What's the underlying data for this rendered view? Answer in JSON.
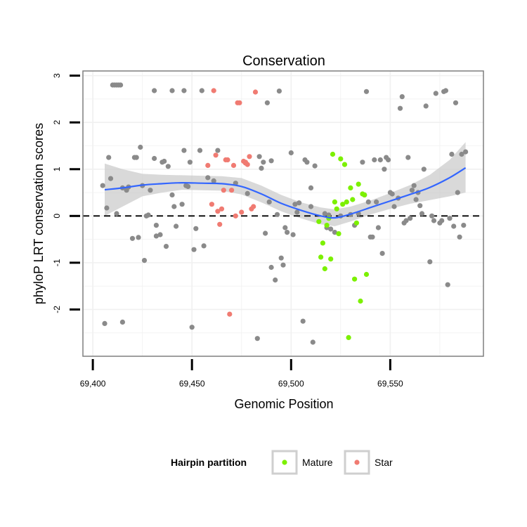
{
  "chart_data": {
    "type": "scatter",
    "title": "Conservation",
    "xlabel": "Genomic Position",
    "ylabel": "phyloP LRT conservation scores",
    "xlim": [
      69395,
      69597
    ],
    "ylim": [
      -3.0,
      3.1
    ],
    "x_ticks": [
      {
        "value": 69400,
        "label": "69,400"
      },
      {
        "value": 69450,
        "label": "69,450"
      },
      {
        "value": 69500,
        "label": "69,500"
      },
      {
        "value": 69550,
        "label": "69,550"
      }
    ],
    "y_ticks": [
      {
        "value": -2,
        "label": "-2"
      },
      {
        "value": -1,
        "label": "-1"
      },
      {
        "value": 0,
        "label": "0"
      },
      {
        "value": 1,
        "label": "1"
      },
      {
        "value": 2,
        "label": "2"
      },
      {
        "value": 3,
        "label": "3"
      }
    ],
    "grid": true,
    "reference_line": {
      "y": 0,
      "style": "dashed"
    },
    "colors": {
      "other": "#8a8a8a",
      "mature": "#7cf000",
      "star": "#f07b72",
      "smooth": "#3366ff",
      "band": "#cccccc",
      "panel_border": "#7f7f7f",
      "grid": "#f0f0f0"
    },
    "legend": {
      "title": "Hairpin partition",
      "placement": "bottom",
      "entries": [
        {
          "label": "Mature",
          "color": "#7cf000"
        },
        {
          "label": "Star",
          "color": "#f07b72"
        }
      ]
    },
    "smooth": {
      "x": [
        69406,
        69415,
        69425,
        69435,
        69445,
        69455,
        69465,
        69475,
        69485,
        69495,
        69505,
        69515,
        69522,
        69530,
        69540,
        69550,
        69560,
        69570,
        69580,
        69588
      ],
      "y": [
        0.56,
        0.6,
        0.66,
        0.69,
        0.71,
        0.7,
        0.69,
        0.63,
        0.47,
        0.27,
        0.12,
        0.0,
        -0.04,
        0.04,
        0.18,
        0.32,
        0.46,
        0.61,
        0.82,
        1.03
      ],
      "ci_lower": [
        0.0,
        0.2,
        0.42,
        0.5,
        0.56,
        0.55,
        0.54,
        0.46,
        0.29,
        0.1,
        -0.05,
        -0.18,
        -0.22,
        -0.12,
        0.03,
        0.15,
        0.26,
        0.34,
        0.42,
        0.5
      ],
      "ci_upper": [
        1.12,
        1.0,
        0.9,
        0.88,
        0.87,
        0.86,
        0.85,
        0.81,
        0.65,
        0.45,
        0.29,
        0.18,
        0.14,
        0.2,
        0.33,
        0.49,
        0.66,
        0.88,
        1.2,
        1.58
      ]
    },
    "series": [
      {
        "group": "other",
        "points": [
          [
            69406,
            -2.3
          ],
          [
            69405,
            0.65
          ],
          [
            69407,
            0.17
          ],
          [
            69408,
            1.25
          ],
          [
            69409,
            0.8
          ],
          [
            69410,
            2.8
          ],
          [
            69411,
            2.8
          ],
          [
            69412,
            2.8
          ],
          [
            69413,
            2.8
          ],
          [
            69414,
            2.8
          ],
          [
            69412,
            0.05
          ],
          [
            69415,
            -2.27
          ],
          [
            69415,
            0.6
          ],
          [
            69417,
            0.55
          ],
          [
            69418,
            0.62
          ],
          [
            69420,
            -0.48
          ],
          [
            69421,
            1.25
          ],
          [
            69422,
            1.25
          ],
          [
            69423,
            -0.46
          ],
          [
            69424,
            1.47
          ],
          [
            69425,
            0.65
          ],
          [
            69426,
            -0.95
          ],
          [
            69427,
            0.0
          ],
          [
            69428,
            0.02
          ],
          [
            69429,
            0.55
          ],
          [
            69431,
            2.68
          ],
          [
            69431,
            1.23
          ],
          [
            69432,
            -0.2
          ],
          [
            69432,
            -0.43
          ],
          [
            69434,
            -0.4
          ],
          [
            69435,
            1.15
          ],
          [
            69436,
            1.17
          ],
          [
            69437,
            -0.65
          ],
          [
            69438,
            1.06
          ],
          [
            69440,
            2.68
          ],
          [
            69440,
            0.45
          ],
          [
            69441,
            0.2
          ],
          [
            69442,
            -0.22
          ],
          [
            69445,
            0.25
          ],
          [
            69446,
            2.68
          ],
          [
            69446,
            1.4
          ],
          [
            69447,
            0.65
          ],
          [
            69448,
            0.63
          ],
          [
            69449,
            1.15
          ],
          [
            69450,
            -2.38
          ],
          [
            69451,
            -0.72
          ],
          [
            69452,
            -0.27
          ],
          [
            69454,
            1.4
          ],
          [
            69455,
            2.68
          ],
          [
            69456,
            -0.64
          ],
          [
            69458,
            0.82
          ],
          [
            69461,
            0.75
          ],
          [
            69463,
            1.4
          ],
          [
            69472,
            0.7
          ],
          [
            69478,
            0.48
          ],
          [
            69483,
            -2.62
          ],
          [
            69484,
            1.27
          ],
          [
            69485,
            1.02
          ],
          [
            69486,
            1.15
          ],
          [
            69487,
            -0.37
          ],
          [
            69488,
            2.42
          ],
          [
            69489,
            0.3
          ],
          [
            69490,
            -1.1
          ],
          [
            69490,
            1.18
          ],
          [
            69492,
            -1.37
          ],
          [
            69493,
            0.03
          ],
          [
            69494,
            2.67
          ],
          [
            69495,
            -0.9
          ],
          [
            69496,
            -1.05
          ],
          [
            69497,
            -0.25
          ],
          [
            69498,
            -0.35
          ],
          [
            69500,
            1.35
          ],
          [
            69501,
            -0.4
          ],
          [
            69502,
            0.25
          ],
          [
            69503,
            0.08
          ],
          [
            69504,
            0.28
          ],
          [
            69506,
            -2.25
          ],
          [
            69507,
            1.2
          ],
          [
            69508,
            1.15
          ],
          [
            69510,
            0.2
          ],
          [
            69510,
            0.6
          ],
          [
            69511,
            -2.7
          ],
          [
            69512,
            1.07
          ],
          [
            69517,
            0.05
          ],
          [
            69518,
            -0.25
          ],
          [
            69519,
            0.02
          ],
          [
            69520,
            -0.28
          ],
          [
            69522,
            -0.35
          ],
          [
            69525,
            0.0
          ],
          [
            69530,
            0.03
          ],
          [
            69532,
            -0.2
          ],
          [
            69534,
            0.05
          ],
          [
            69536,
            1.15
          ],
          [
            69537,
            0.45
          ],
          [
            69538,
            2.66
          ],
          [
            69539,
            0.3
          ],
          [
            69540,
            -0.45
          ],
          [
            69541,
            -0.45
          ],
          [
            69542,
            1.2
          ],
          [
            69543,
            0.3
          ],
          [
            69544,
            -0.25
          ],
          [
            69545,
            1.2
          ],
          [
            69546,
            -0.8
          ],
          [
            69547,
            1.0
          ],
          [
            69548,
            1.25
          ],
          [
            69549,
            1.2
          ],
          [
            69550,
            0.5
          ],
          [
            69551,
            0.47
          ],
          [
            69552,
            0.2
          ],
          [
            69554,
            0.38
          ],
          [
            69555,
            2.3
          ],
          [
            69556,
            2.55
          ],
          [
            69557,
            -0.15
          ],
          [
            69558,
            -0.1
          ],
          [
            69559,
            1.25
          ],
          [
            69560,
            -0.05
          ],
          [
            69561,
            0.55
          ],
          [
            69562,
            0.65
          ],
          [
            69563,
            0.35
          ],
          [
            69564,
            0.5
          ],
          [
            69565,
            0.22
          ],
          [
            69566,
            0.05
          ],
          [
            69567,
            1.0
          ],
          [
            69568,
            2.35
          ],
          [
            69570,
            -0.98
          ],
          [
            69571,
            0.0
          ],
          [
            69572,
            -0.1
          ],
          [
            69573,
            2.62
          ],
          [
            69575,
            -0.15
          ],
          [
            69576,
            -0.1
          ],
          [
            69577,
            2.66
          ],
          [
            69578,
            2.68
          ],
          [
            69579,
            -1.47
          ],
          [
            69580,
            -0.05
          ],
          [
            69581,
            1.32
          ],
          [
            69582,
            -0.22
          ],
          [
            69583,
            2.42
          ],
          [
            69584,
            0.5
          ],
          [
            69585,
            -0.45
          ],
          [
            69586,
            1.32
          ],
          [
            69587,
            -0.2
          ],
          [
            69588,
            1.37
          ]
        ]
      },
      {
        "group": "mature",
        "name": "Mature",
        "points": [
          [
            69514,
            -0.12
          ],
          [
            69515,
            -0.88
          ],
          [
            69516,
            -0.58
          ],
          [
            69517,
            -1.13
          ],
          [
            69518,
            -0.2
          ],
          [
            69519,
            -0.05
          ],
          [
            69520,
            -0.92
          ],
          [
            69521,
            1.32
          ],
          [
            69522,
            0.3
          ],
          [
            69523,
            0.15
          ],
          [
            69524,
            -0.38
          ],
          [
            69525,
            1.22
          ],
          [
            69526,
            0.25
          ],
          [
            69527,
            1.1
          ],
          [
            69528,
            0.3
          ],
          [
            69529,
            -2.6
          ],
          [
            69530,
            0.6
          ],
          [
            69531,
            0.35
          ],
          [
            69532,
            -1.35
          ],
          [
            69533,
            -0.15
          ],
          [
            69534,
            0.68
          ],
          [
            69535,
            -1.82
          ],
          [
            69536,
            0.47
          ],
          [
            69537,
            0.45
          ],
          [
            69538,
            -1.25
          ]
        ]
      },
      {
        "group": "star",
        "name": "Star",
        "points": [
          [
            69458,
            1.08
          ],
          [
            69460,
            0.25
          ],
          [
            69461,
            2.68
          ],
          [
            69462,
            1.3
          ],
          [
            69463,
            0.1
          ],
          [
            69464,
            -0.18
          ],
          [
            69465,
            0.15
          ],
          [
            69466,
            0.55
          ],
          [
            69467,
            1.2
          ],
          [
            69468,
            1.2
          ],
          [
            69469,
            -2.1
          ],
          [
            69470,
            0.55
          ],
          [
            69471,
            1.08
          ],
          [
            69472,
            0.0
          ],
          [
            69473,
            2.42
          ],
          [
            69474,
            2.42
          ],
          [
            69476,
            1.17
          ],
          [
            69477,
            1.13
          ],
          [
            69478,
            1.1
          ],
          [
            69479,
            1.27
          ],
          [
            69480,
            0.15
          ],
          [
            69481,
            0.2
          ],
          [
            69482,
            2.65
          ],
          [
            69475,
            0.08
          ],
          [
            69477,
            1.15
          ]
        ]
      }
    ]
  }
}
